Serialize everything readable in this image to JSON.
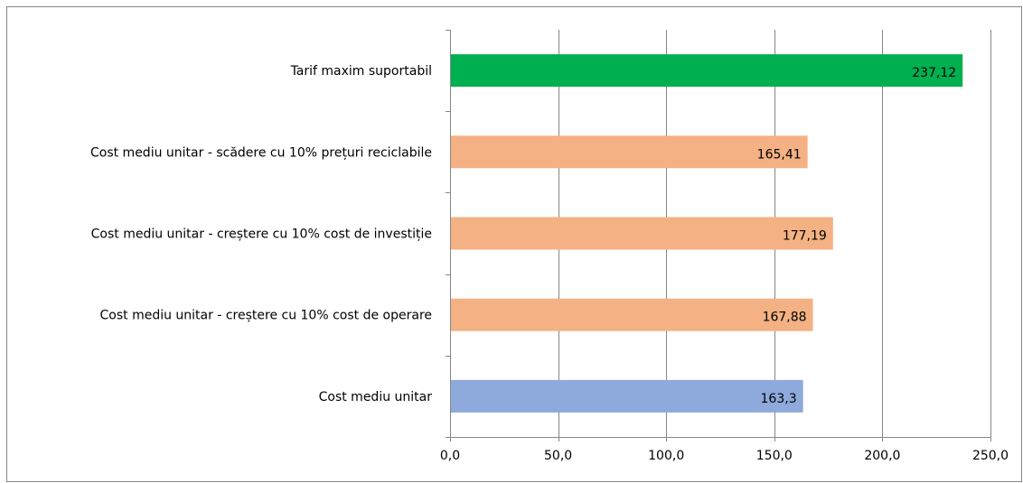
{
  "chart_data": {
    "type": "bar",
    "orientation": "horizontal",
    "categories": [
      "Tarif maxim suportabil",
      "Cost mediu unitar - scădere cu 10% prețuri reciclabile",
      "Cost mediu unitar - creștere cu 10% cost de investiție",
      "Cost mediu unitar - creștere cu 10% cost de operare",
      "Cost mediu unitar"
    ],
    "values": [
      237.12,
      165.41,
      177.19,
      167.88,
      163.3
    ],
    "data_labels": [
      "237,12",
      "165,41",
      "177,19",
      "167,88",
      "163,3"
    ],
    "bar_colors": [
      "#00B050",
      "#F4B183",
      "#F4B183",
      "#F4B183",
      "#8EA9DB"
    ],
    "xlim": [
      0,
      250
    ],
    "x_ticks": [
      0,
      50,
      100,
      150,
      200,
      250
    ],
    "x_tick_labels": [
      "0,0",
      "50,0",
      "100,0",
      "150,0",
      "200,0",
      "250,0"
    ],
    "grid": true,
    "legend": "none",
    "title": "",
    "xlabel": "",
    "ylabel": ""
  },
  "colors": {
    "gridline": "#868686",
    "axis": "#868686",
    "frame": "#868686"
  }
}
